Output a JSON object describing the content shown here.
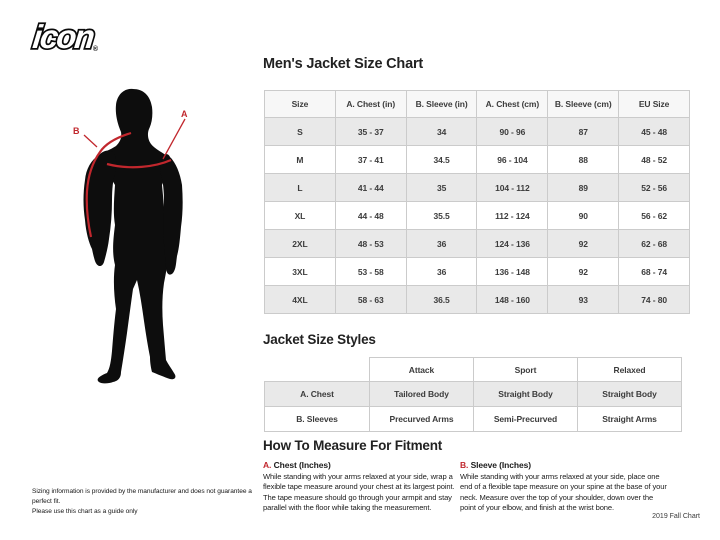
{
  "logo": {
    "text": "icon",
    "registered": "®"
  },
  "figure": {
    "label_a": "A",
    "label_b": "B"
  },
  "size_chart": {
    "title": "Men's Jacket Size Chart",
    "columns": [
      "Size",
      "A. Chest (in)",
      "B. Sleeve (in)",
      "A. Chest (cm)",
      "B. Sleeve (cm)",
      "EU Size"
    ],
    "rows": [
      [
        "S",
        "35 - 37",
        "34",
        "90 - 96",
        "87",
        "45 - 48"
      ],
      [
        "M",
        "37 - 41",
        "34.5",
        "96 - 104",
        "88",
        "48 - 52"
      ],
      [
        "L",
        "41 - 44",
        "35",
        "104 - 112",
        "89",
        "52 - 56"
      ],
      [
        "XL",
        "44 - 48",
        "35.5",
        "112 - 124",
        "90",
        "56 - 62"
      ],
      [
        "2XL",
        "48 - 53",
        "36",
        "124 - 136",
        "92",
        "62 - 68"
      ],
      [
        "3XL",
        "53 - 58",
        "36",
        "136 - 148",
        "92",
        "68 - 74"
      ],
      [
        "4XL",
        "58 - 63",
        "36.5",
        "148 - 160",
        "93",
        "74 - 80"
      ]
    ]
  },
  "styles_chart": {
    "title": "Jacket Size Styles",
    "columns": [
      "",
      "Attack",
      "Sport",
      "Relaxed"
    ],
    "rows": [
      [
        "A. Chest",
        "Tailored Body",
        "Straight Body",
        "Straight Body"
      ],
      [
        "B. Sleeves",
        "Precurved Arms",
        "Semi-Precurved",
        "Straight Arms"
      ]
    ]
  },
  "measure": {
    "title": "How To Measure For Fitment",
    "sections": [
      {
        "prefix": "A.",
        "heading": "Chest (Inches)",
        "body": "While standing with your arms relaxed at your side, wrap a flexible tape measure around your chest at its largest point. The tape measure should go through your armpit and stay parallel with the floor while taking the measurement."
      },
      {
        "prefix": "B.",
        "heading": "Sleeve (Inches)",
        "body": "While standing with your arms relaxed at your side, place one end of a flexible tape measure on your spine at the base of your neck. Measure over the top of your shoulder, down over the point of your elbow, and finish at the wrist bone."
      }
    ]
  },
  "footer": {
    "disclaimer_lines": [
      "Sizing information is provided by the manufacturer and does not guarantee a perfect fit.",
      "Please use this chart as a guide only"
    ],
    "edition": "2019 Fall Chart"
  },
  "colors": {
    "accent_red": "#c1272d",
    "row_gray": "#e9e9e9",
    "border": "#cbcbcb",
    "text": "#333333"
  }
}
